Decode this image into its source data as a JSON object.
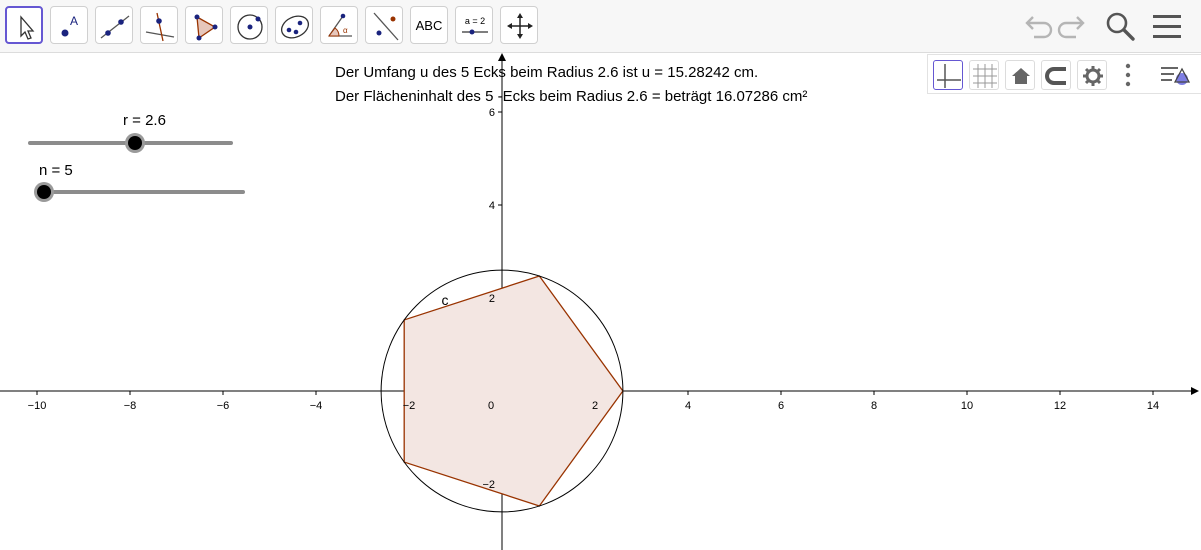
{
  "toolbar": {
    "tools": [
      {
        "id": "move",
        "icon": "move-pointer-icon"
      },
      {
        "id": "point",
        "icon": "point-icon",
        "label": "A"
      },
      {
        "id": "line",
        "icon": "line-icon"
      },
      {
        "id": "perpendicular",
        "icon": "perpendicular-line-icon"
      },
      {
        "id": "polygon",
        "icon": "polygon-icon"
      },
      {
        "id": "circle",
        "icon": "circle-center-point-icon"
      },
      {
        "id": "ellipse",
        "icon": "ellipse-icon"
      },
      {
        "id": "angle",
        "icon": "angle-icon",
        "label": "α"
      },
      {
        "id": "reflect",
        "icon": "reflect-icon"
      },
      {
        "id": "text",
        "icon": "text-icon",
        "label": "ABC"
      },
      {
        "id": "slider",
        "icon": "slider-icon",
        "label": "a = 2"
      },
      {
        "id": "move-view",
        "icon": "move-graphics-view-icon"
      }
    ],
    "right": {
      "undo": "undo-icon",
      "redo": "redo-icon",
      "search": "search-icon",
      "menu": "hamburger-menu-icon"
    }
  },
  "style_bar": {
    "buttons": [
      "axes-icon",
      "grid-icon",
      "home-icon",
      "magnet-icon",
      "gear-icon",
      "more-vertical-icon",
      "algebra-toggle-icon"
    ]
  },
  "texts": {
    "perimeter": "Der Umfang u des 5 Ecks beim Radius 2.6 ist u = 15.28242 cm.",
    "area": "Der Flächeninhalt des 5 -Ecks beim Radius 2.6 =  beträgt 16.07286 cm²"
  },
  "sliders": {
    "r": {
      "label": "r = 2.6",
      "value": 2.6,
      "min": 0,
      "max": 5
    },
    "n": {
      "label": "n = 5",
      "value": 5,
      "min": 3,
      "max": 100
    }
  },
  "graph": {
    "x_ticks": [
      "−10",
      "−8",
      "−6",
      "−4",
      "−2",
      "0",
      "2",
      "4",
      "6",
      "8",
      "10",
      "12",
      "14"
    ],
    "y_ticks": [
      "6",
      "4",
      "2",
      "−2"
    ],
    "circle_label": "c",
    "radius": 2.6,
    "n_sides": 5,
    "polygon_color": "#993300",
    "polygon_fill": "#f3e6e2",
    "circle_color": "#000000"
  }
}
